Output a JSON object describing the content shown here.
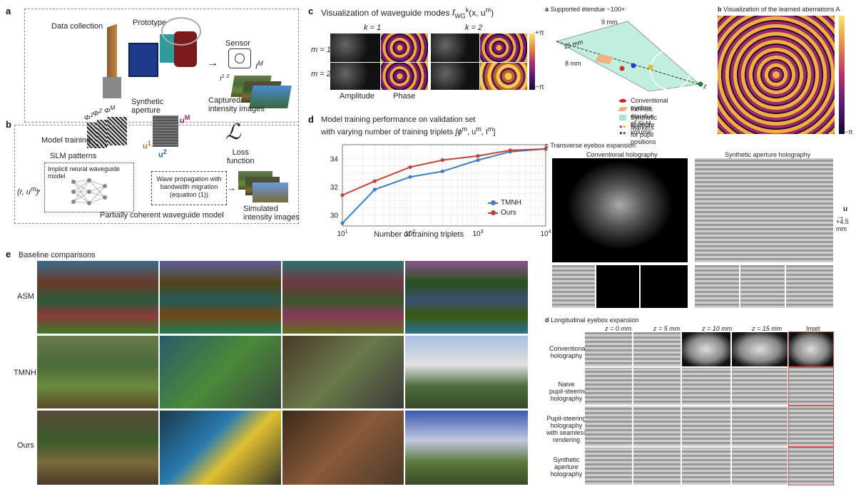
{
  "panel_a": {
    "label": "a",
    "data_collection": "Data collection",
    "prototype": "Prototype",
    "sensor": "Sensor",
    "i_m": "I",
    "i_m_sup": "M",
    "i_1": "I",
    "i_1_sup": "1",
    "i_2_sup": "2",
    "captured": "Captured\nintensity images",
    "synthetic_aperture": "Synthetic\naperture",
    "u_m": "u",
    "u_m_sup": "M",
    "u_1": "u",
    "u_1_sup": "1",
    "u_2": "u",
    "u_2_sup": "2",
    "phi_1": "Φ",
    "phi_1_sup": "1",
    "phi_2": "Φ",
    "phi_2_sup": "2",
    "phi_m": "Φ",
    "phi_m_sup": "M",
    "model_training": "Model training",
    "loss_symbol": "ℒ"
  },
  "panel_b": {
    "label": "b",
    "slm_patterns": "SLM patterns",
    "implicit_model": "Implicit neural waveguide model",
    "wave_propagation": "Wave propagation with\nbandwidth migration\n(equation (1))",
    "loss_function": "Loss\nfunction",
    "input_vars": "(r, u",
    "input_vars_sup": "m",
    "input_close": ")",
    "simulated": "Simulated\nintensity images",
    "partially_coherent": "Partially coherent waveguide model"
  },
  "panel_c": {
    "label": "c",
    "title": "Visualization of waveguide modes",
    "title_math": "f",
    "title_math_rest": "(x, u",
    "title_math_sup": "m",
    "title_math_close": ")",
    "title_math_subsup": "k",
    "title_math_sub": "WG",
    "k1": "k = 1",
    "k2": "k = 2",
    "m1": "m = 1",
    "m2": "m = 2",
    "amplitude": "Amplitude",
    "phase": "Phase",
    "cb_top": "+π",
    "cb_bottom": "−π"
  },
  "panel_d": {
    "label": "d",
    "title_line1": "Model training performance on validation set",
    "title_line2": "with varying number of training triplets",
    "title_math": "[ϕ",
    "title_math_m": "m",
    "title_math_u": ", u",
    "title_math_u_sup": "m",
    "title_math_i": ", I",
    "title_math_i_sup": "m",
    "title_math_close": "]",
    "xlabel": "Number of training triplets",
    "legend_tmnh": "TMNH",
    "legend_ours": "Ours"
  },
  "chart_data": {
    "type": "line",
    "title": "Model training performance on validation set with varying number of training triplets",
    "xlabel": "Number of training triplets",
    "ylabel": "",
    "xscale": "log",
    "xlim": [
      10,
      10000
    ],
    "ylim": [
      29.2,
      35.0
    ],
    "x_ticks": [
      "10^1",
      "10^2",
      "10^3",
      "10^4"
    ],
    "y_ticks": [
      30,
      32,
      34
    ],
    "grid": true,
    "legend_position": "bottom-right",
    "series": [
      {
        "name": "TMNH",
        "color": "#3f7fc1",
        "x": [
          10,
          30,
          100,
          300,
          1000,
          3000,
          10000
        ],
        "y": [
          29.4,
          31.8,
          32.7,
          33.1,
          33.9,
          34.5,
          34.7
        ]
      },
      {
        "name": "Ours",
        "color": "#c0443a",
        "x": [
          10,
          30,
          100,
          300,
          1000,
          3000,
          10000
        ],
        "y": [
          31.4,
          32.4,
          33.4,
          33.9,
          34.2,
          34.6,
          34.7
        ]
      }
    ]
  },
  "panel_e": {
    "label": "e",
    "title": "Baseline comparisons",
    "rows": [
      "ASM",
      "TMNH",
      "Ours"
    ]
  },
  "right_a": {
    "label": "a",
    "title": "Supported étendue ~100×",
    "dim_9": "9 mm",
    "dim_25": "25 mm",
    "dim_8": "8 mm",
    "z": "z",
    "legend": [
      "Conventional eyebox",
      "Intrinsic étendue of SLM",
      "Synthetic aperture volume",
      "Markers for pupil positions"
    ]
  },
  "right_b": {
    "label": "b",
    "title": "Visualization of the learned aberrations A",
    "cb_bottom": "−π"
  },
  "right_c": {
    "label": "c",
    "title": "Transverse eyebox expansion",
    "conventional": "Conventional holography",
    "synthetic": "Synthetic aperture holography",
    "u_label": "u",
    "shift": "+4.5 mm"
  },
  "right_d": {
    "label": "d",
    "title": "Longitudinal eyebox expansion",
    "cols": [
      "z = 0 mm",
      "z = 5 mm",
      "z = 10 mm",
      "z = 15 mm",
      "Inset"
    ],
    "rows": [
      "Conventional\nholography",
      "Naive\npupil-steering\nholography",
      "Pupil-steering\nholography\nwith seamless\nrendering",
      "Synthetic\naperture\nholography"
    ]
  }
}
